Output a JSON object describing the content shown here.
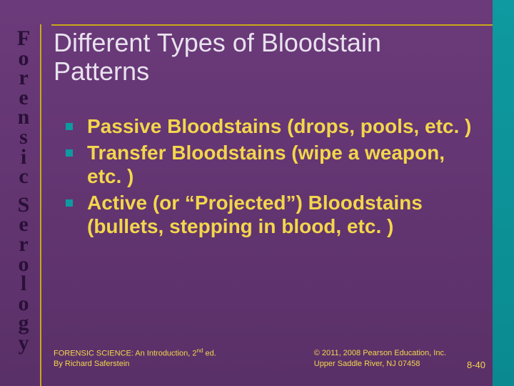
{
  "colors": {
    "bg_top": "#6b3a7a",
    "bg_bottom": "#5a3068",
    "teal": "#0e9aa0",
    "gold_rule": "#c9a818",
    "title_text": "#e8e2ee",
    "body_text": "#f3d64b",
    "vertical_text": "#2a1038"
  },
  "vertical": {
    "word1": "Forensic",
    "word2": "Serology"
  },
  "title": "Different Types of Bloodstain Patterns",
  "bullets": [
    "Passive Bloodstains (drops, pools, etc. )",
    "Transfer Bloodstains (wipe a weapon, etc. )",
    "Active (or “Projected”) Bloodstains (bullets, stepping in blood, etc. )"
  ],
  "footer": {
    "left_line1_a": "FORENSIC SCIENCE: An Introduction, 2",
    "left_line1_sup": "nd",
    "left_line1_b": " ed.",
    "left_line2": "By Richard Saferstein",
    "right_line1": "© 2011, 2008 Pearson Education, Inc.",
    "right_line2": "Upper Saddle River, NJ 07458",
    "slide_number": "8-40"
  }
}
